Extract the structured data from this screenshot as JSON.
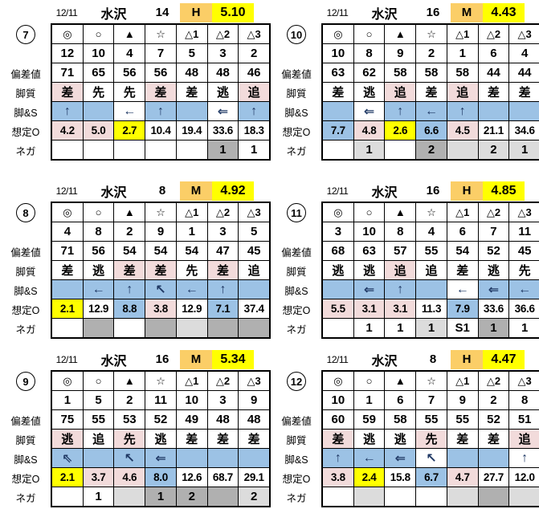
{
  "colors": {
    "white": "#FFFFFF",
    "pink": "#F2DBDB",
    "blue": "#9CC2E5",
    "yellow": "#FFFF00",
    "orange": "#FBCE67",
    "gray1": "#DCDCDC",
    "gray2": "#B0B0B0"
  },
  "marks": [
    "◎",
    "○",
    "▲",
    "☆",
    "△1",
    "△2",
    "△3"
  ],
  "row_labels": [
    "",
    "",
    "偏差値",
    "脚質",
    "脚&S",
    "想定O",
    "ネガ"
  ],
  "blocks": [
    {
      "no": "7",
      "header": {
        "date": "12/11",
        "track": "水沢",
        "field_size": "14",
        "pace_class": "H",
        "pace_value": "5.10"
      },
      "numbers": [
        "12",
        "10",
        "4",
        "7",
        "5",
        "3",
        "2"
      ],
      "deviation": [
        "71",
        "65",
        "56",
        "56",
        "48",
        "48",
        "46"
      ],
      "style": [
        {
          "t": "差",
          "bg": "pink"
        },
        {
          "t": "先",
          "bg": "white"
        },
        {
          "t": "先",
          "bg": "white"
        },
        {
          "t": "差",
          "bg": "pink"
        },
        {
          "t": "差",
          "bg": "white"
        },
        {
          "t": "逃",
          "bg": "white"
        },
        {
          "t": "追",
          "bg": "pink"
        }
      ],
      "legs": [
        {
          "t": "↑",
          "bg": "blue"
        },
        {
          "t": "",
          "bg": "blue"
        },
        {
          "t": "←",
          "bg": "white"
        },
        {
          "t": "↑",
          "bg": "blue"
        },
        {
          "t": "",
          "bg": "blue"
        },
        {
          "t": "⇐",
          "bg": "white"
        },
        {
          "t": "↑",
          "bg": "blue"
        }
      ],
      "odds": [
        {
          "t": "4.2",
          "bg": "pink"
        },
        {
          "t": "5.0",
          "bg": "pink"
        },
        {
          "t": "2.7",
          "bg": "yellow"
        },
        {
          "t": "10.4",
          "bg": "white"
        },
        {
          "t": "19.4",
          "bg": "white"
        },
        {
          "t": "33.6",
          "bg": "white"
        },
        {
          "t": "18.3",
          "bg": "white"
        }
      ],
      "nega": [
        {
          "t": "",
          "bg": "white"
        },
        {
          "t": "",
          "bg": "white"
        },
        {
          "t": "",
          "bg": "white"
        },
        {
          "t": "",
          "bg": "white"
        },
        {
          "t": "",
          "bg": "white"
        },
        {
          "t": "1",
          "bg": "gray2"
        },
        {
          "t": "1",
          "bg": "white"
        }
      ]
    },
    {
      "no": "8",
      "header": {
        "date": "12/11",
        "track": "水沢",
        "field_size": "8",
        "pace_class": "M",
        "pace_value": "4.92"
      },
      "numbers": [
        "4",
        "8",
        "2",
        "9",
        "1",
        "3",
        "5"
      ],
      "deviation": [
        "71",
        "56",
        "54",
        "54",
        "54",
        "47",
        "45"
      ],
      "style": [
        {
          "t": "差",
          "bg": "white"
        },
        {
          "t": "逃",
          "bg": "white"
        },
        {
          "t": "差",
          "bg": "pink"
        },
        {
          "t": "差",
          "bg": "pink"
        },
        {
          "t": "先",
          "bg": "white"
        },
        {
          "t": "差",
          "bg": "pink"
        },
        {
          "t": "追",
          "bg": "white"
        }
      ],
      "legs": [
        {
          "t": "",
          "bg": "blue"
        },
        {
          "t": "←",
          "bg": "blue"
        },
        {
          "t": "↑",
          "bg": "blue"
        },
        {
          "t": "↖",
          "bg": "blue"
        },
        {
          "t": "←",
          "bg": "blue"
        },
        {
          "t": "↑",
          "bg": "blue"
        },
        {
          "t": "",
          "bg": "blue"
        }
      ],
      "odds": [
        {
          "t": "2.1",
          "bg": "yellow"
        },
        {
          "t": "12.9",
          "bg": "white"
        },
        {
          "t": "8.8",
          "bg": "blue"
        },
        {
          "t": "3.8",
          "bg": "pink"
        },
        {
          "t": "12.9",
          "bg": "white"
        },
        {
          "t": "7.1",
          "bg": "blue"
        },
        {
          "t": "37.4",
          "bg": "white"
        }
      ],
      "nega": [
        {
          "t": "",
          "bg": "white"
        },
        {
          "t": "",
          "bg": "gray2"
        },
        {
          "t": "",
          "bg": "white"
        },
        {
          "t": "",
          "bg": "gray2"
        },
        {
          "t": "",
          "bg": "gray1"
        },
        {
          "t": "",
          "bg": "gray2"
        },
        {
          "t": "",
          "bg": "gray2"
        }
      ]
    },
    {
      "no": "9",
      "header": {
        "date": "12/11",
        "track": "水沢",
        "field_size": "16",
        "pace_class": "M",
        "pace_value": "5.34"
      },
      "numbers": [
        "1",
        "5",
        "2",
        "11",
        "10",
        "3",
        "9"
      ],
      "deviation": [
        "75",
        "55",
        "53",
        "52",
        "49",
        "48",
        "48"
      ],
      "style": [
        {
          "t": "逃",
          "bg": "pink"
        },
        {
          "t": "追",
          "bg": "white"
        },
        {
          "t": "先",
          "bg": "pink"
        },
        {
          "t": "逃",
          "bg": "white"
        },
        {
          "t": "差",
          "bg": "white"
        },
        {
          "t": "差",
          "bg": "white"
        },
        {
          "t": "差",
          "bg": "white"
        }
      ],
      "legs": [
        {
          "t": "⇖",
          "bg": "blue"
        },
        {
          "t": "",
          "bg": "blue"
        },
        {
          "t": "↖",
          "bg": "blue"
        },
        {
          "t": "⇐",
          "bg": "blue"
        },
        {
          "t": "",
          "bg": "blue"
        },
        {
          "t": "",
          "bg": "blue"
        },
        {
          "t": "",
          "bg": "blue"
        }
      ],
      "odds": [
        {
          "t": "2.1",
          "bg": "yellow"
        },
        {
          "t": "3.7",
          "bg": "pink"
        },
        {
          "t": "4.6",
          "bg": "pink"
        },
        {
          "t": "8.0",
          "bg": "blue"
        },
        {
          "t": "12.6",
          "bg": "white"
        },
        {
          "t": "68.7",
          "bg": "white"
        },
        {
          "t": "29.1",
          "bg": "white"
        }
      ],
      "nega": [
        {
          "t": "",
          "bg": "white"
        },
        {
          "t": "1",
          "bg": "white"
        },
        {
          "t": "",
          "bg": "gray1"
        },
        {
          "t": "1",
          "bg": "gray2"
        },
        {
          "t": "2",
          "bg": "gray2"
        },
        {
          "t": "",
          "bg": "gray2"
        },
        {
          "t": "2",
          "bg": "gray1"
        }
      ]
    },
    {
      "no": "10",
      "header": {
        "date": "12/11",
        "track": "水沢",
        "field_size": "16",
        "pace_class": "M",
        "pace_value": "4.43"
      },
      "numbers": [
        "10",
        "8",
        "9",
        "2",
        "1",
        "6",
        "4"
      ],
      "deviation": [
        "63",
        "62",
        "58",
        "58",
        "58",
        "44",
        "44"
      ],
      "style": [
        {
          "t": "差",
          "bg": "white"
        },
        {
          "t": "逃",
          "bg": "white"
        },
        {
          "t": "追",
          "bg": "pink"
        },
        {
          "t": "差",
          "bg": "white"
        },
        {
          "t": "追",
          "bg": "pink"
        },
        {
          "t": "差",
          "bg": "white"
        },
        {
          "t": "差",
          "bg": "white"
        }
      ],
      "legs": [
        {
          "t": "",
          "bg": "blue"
        },
        {
          "t": "⇐",
          "bg": "white"
        },
        {
          "t": "↑",
          "bg": "blue"
        },
        {
          "t": "←",
          "bg": "blue"
        },
        {
          "t": "↑",
          "bg": "blue"
        },
        {
          "t": "",
          "bg": "blue"
        },
        {
          "t": "",
          "bg": "blue"
        }
      ],
      "odds": [
        {
          "t": "7.7",
          "bg": "blue"
        },
        {
          "t": "4.8",
          "bg": "pink"
        },
        {
          "t": "2.6",
          "bg": "yellow"
        },
        {
          "t": "6.6",
          "bg": "blue"
        },
        {
          "t": "4.5",
          "bg": "pink"
        },
        {
          "t": "21.1",
          "bg": "white"
        },
        {
          "t": "34.6",
          "bg": "white"
        }
      ],
      "nega": [
        {
          "t": "",
          "bg": "white"
        },
        {
          "t": "1",
          "bg": "gray1"
        },
        {
          "t": "",
          "bg": "white"
        },
        {
          "t": "2",
          "bg": "gray2"
        },
        {
          "t": "",
          "bg": "gray1"
        },
        {
          "t": "2",
          "bg": "gray1"
        },
        {
          "t": "1",
          "bg": "gray1"
        }
      ]
    },
    {
      "no": "11",
      "header": {
        "date": "12/11",
        "track": "水沢",
        "field_size": "16",
        "pace_class": "H",
        "pace_value": "4.85"
      },
      "numbers": [
        "3",
        "10",
        "8",
        "4",
        "6",
        "7",
        "11"
      ],
      "deviation": [
        "68",
        "63",
        "57",
        "55",
        "54",
        "52",
        "45"
      ],
      "style": [
        {
          "t": "逃",
          "bg": "white"
        },
        {
          "t": "逃",
          "bg": "white"
        },
        {
          "t": "追",
          "bg": "pink"
        },
        {
          "t": "追",
          "bg": "white"
        },
        {
          "t": "差",
          "bg": "white"
        },
        {
          "t": "逃",
          "bg": "white"
        },
        {
          "t": "先",
          "bg": "white"
        }
      ],
      "legs": [
        {
          "t": "",
          "bg": "blue"
        },
        {
          "t": "⇐",
          "bg": "blue"
        },
        {
          "t": "↑",
          "bg": "blue"
        },
        {
          "t": "",
          "bg": "blue"
        },
        {
          "t": "←",
          "bg": "white"
        },
        {
          "t": "⇐",
          "bg": "blue"
        },
        {
          "t": "←",
          "bg": "blue"
        }
      ],
      "odds": [
        {
          "t": "5.5",
          "bg": "pink"
        },
        {
          "t": "3.1",
          "bg": "pink"
        },
        {
          "t": "3.1",
          "bg": "pink"
        },
        {
          "t": "11.3",
          "bg": "white"
        },
        {
          "t": "7.9",
          "bg": "blue"
        },
        {
          "t": "33.6",
          "bg": "white"
        },
        {
          "t": "36.6",
          "bg": "white"
        }
      ],
      "nega": [
        {
          "t": "",
          "bg": "white"
        },
        {
          "t": "1",
          "bg": "white"
        },
        {
          "t": "1",
          "bg": "white"
        },
        {
          "t": "1",
          "bg": "gray1"
        },
        {
          "t": "S1",
          "bg": "white"
        },
        {
          "t": "1",
          "bg": "gray2"
        },
        {
          "t": "1",
          "bg": "white"
        }
      ]
    },
    {
      "no": "12",
      "header": {
        "date": "12/11",
        "track": "水沢",
        "field_size": "8",
        "pace_class": "H",
        "pace_value": "4.47"
      },
      "numbers": [
        "10",
        "1",
        "6",
        "7",
        "9",
        "2",
        "8"
      ],
      "deviation": [
        "60",
        "59",
        "58",
        "55",
        "55",
        "52",
        "51"
      ],
      "style": [
        {
          "t": "差",
          "bg": "pink"
        },
        {
          "t": "逃",
          "bg": "white"
        },
        {
          "t": "逃",
          "bg": "white"
        },
        {
          "t": "先",
          "bg": "pink"
        },
        {
          "t": "差",
          "bg": "white"
        },
        {
          "t": "差",
          "bg": "white"
        },
        {
          "t": "追",
          "bg": "pink"
        }
      ],
      "legs": [
        {
          "t": "↑",
          "bg": "blue"
        },
        {
          "t": "←",
          "bg": "blue"
        },
        {
          "t": "⇐",
          "bg": "blue"
        },
        {
          "t": "↖",
          "bg": "white"
        },
        {
          "t": "",
          "bg": "blue"
        },
        {
          "t": "",
          "bg": "blue"
        },
        {
          "t": "↑",
          "bg": "white"
        }
      ],
      "odds": [
        {
          "t": "3.8",
          "bg": "pink"
        },
        {
          "t": "2.4",
          "bg": "yellow"
        },
        {
          "t": "15.8",
          "bg": "white"
        },
        {
          "t": "6.7",
          "bg": "blue"
        },
        {
          "t": "4.7",
          "bg": "pink"
        },
        {
          "t": "27.7",
          "bg": "white"
        },
        {
          "t": "12.0",
          "bg": "white"
        }
      ],
      "nega": [
        {
          "t": "",
          "bg": "white"
        },
        {
          "t": "",
          "bg": "gray1"
        },
        {
          "t": "",
          "bg": "white"
        },
        {
          "t": "",
          "bg": "white"
        },
        {
          "t": "",
          "bg": "gray1"
        },
        {
          "t": "",
          "bg": "gray2"
        },
        {
          "t": "",
          "bg": "gray1"
        }
      ]
    }
  ]
}
